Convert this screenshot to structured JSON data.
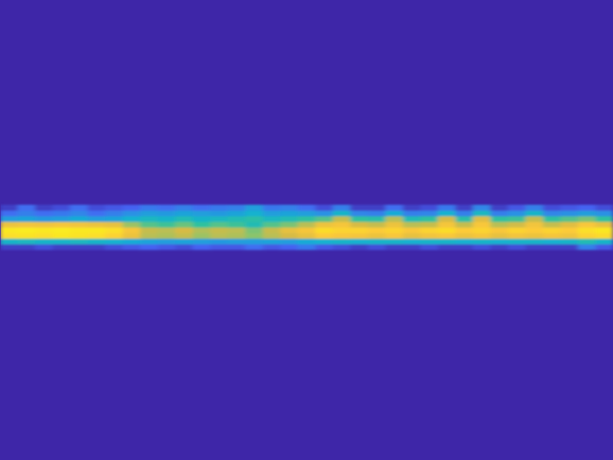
{
  "chart_data": {
    "type": "heatmap",
    "x": [
      0,
      1,
      2,
      3,
      4,
      5,
      6,
      7,
      8,
      9,
      10,
      11,
      12,
      13,
      14,
      15,
      16,
      17,
      18,
      19,
      20,
      21,
      22,
      23,
      24,
      25,
      26,
      27,
      28,
      29,
      30,
      31,
      32,
      33,
      34
    ],
    "y": [
      38,
      39,
      40,
      41,
      42,
      43,
      44,
      45
    ],
    "z": [
      [
        0.05,
        0.05,
        0.08,
        0.05,
        0.05,
        0.05,
        0.08,
        0.1,
        0.12,
        0.1,
        0.08,
        0.12,
        0.1,
        0.1,
        0.15,
        0.1,
        0.12,
        0.18,
        0.1,
        0.08,
        0.05,
        0.08,
        0.05,
        0.05,
        0.08,
        0.05,
        0.05,
        0.08,
        0.05,
        0.08,
        0.05,
        0.05,
        0.05,
        0.2,
        0.1
      ],
      [
        0.4,
        0.42,
        0.4,
        0.4,
        0.42,
        0.4,
        0.38,
        0.35,
        0.32,
        0.3,
        0.32,
        0.3,
        0.28,
        0.3,
        0.3,
        0.32,
        0.3,
        0.35,
        0.38,
        0.4,
        0.38,
        0.4,
        0.4,
        0.38,
        0.4,
        0.4,
        0.38,
        0.4,
        0.38,
        0.4,
        0.4,
        0.38,
        0.4,
        0.45,
        0.4
      ],
      [
        0.93,
        0.94,
        0.93,
        0.95,
        0.94,
        0.93,
        0.9,
        0.82,
        0.7,
        0.68,
        0.72,
        0.65,
        0.7,
        0.68,
        0.62,
        0.7,
        0.75,
        0.8,
        0.88,
        0.86,
        0.85,
        0.82,
        0.86,
        0.8,
        0.84,
        0.86,
        0.82,
        0.85,
        0.8,
        0.84,
        0.82,
        0.85,
        0.83,
        0.9,
        0.92
      ],
      [
        0.95,
        0.96,
        0.95,
        0.96,
        0.95,
        0.95,
        0.93,
        0.85,
        0.72,
        0.7,
        0.75,
        0.68,
        0.72,
        0.7,
        0.6,
        0.72,
        0.8,
        0.85,
        0.92,
        0.9,
        0.9,
        0.88,
        0.9,
        0.86,
        0.9,
        0.92,
        0.88,
        0.9,
        0.86,
        0.9,
        0.88,
        0.9,
        0.88,
        0.93,
        0.95
      ],
      [
        0.82,
        0.84,
        0.83,
        0.85,
        0.84,
        0.82,
        0.8,
        0.65,
        0.55,
        0.52,
        0.58,
        0.5,
        0.55,
        0.52,
        0.45,
        0.55,
        0.6,
        0.7,
        0.82,
        0.85,
        0.75,
        0.72,
        0.82,
        0.7,
        0.72,
        0.85,
        0.72,
        0.86,
        0.7,
        0.74,
        0.84,
        0.72,
        0.78,
        0.86,
        0.8
      ],
      [
        0.3,
        0.32,
        0.28,
        0.3,
        0.35,
        0.3,
        0.32,
        0.38,
        0.42,
        0.4,
        0.45,
        0.4,
        0.42,
        0.45,
        0.48,
        0.42,
        0.45,
        0.5,
        0.55,
        0.72,
        0.5,
        0.48,
        0.7,
        0.45,
        0.5,
        0.75,
        0.48,
        0.78,
        0.5,
        0.52,
        0.72,
        0.5,
        0.55,
        0.6,
        0.5
      ],
      [
        0.15,
        0.2,
        0.15,
        0.18,
        0.22,
        0.15,
        0.2,
        0.25,
        0.3,
        0.28,
        0.32,
        0.3,
        0.28,
        0.32,
        0.38,
        0.3,
        0.32,
        0.3,
        0.25,
        0.4,
        0.22,
        0.2,
        0.35,
        0.2,
        0.22,
        0.38,
        0.2,
        0.42,
        0.2,
        0.25,
        0.4,
        0.22,
        0.25,
        0.3,
        0.25
      ],
      [
        0.05,
        0.15,
        0.05,
        0.08,
        0.15,
        0.08,
        0.1,
        0.12,
        0.18,
        0.15,
        0.2,
        0.15,
        0.18,
        0.2,
        0.3,
        0.18,
        0.2,
        0.15,
        0.08,
        0.2,
        0.05,
        0.05,
        0.15,
        0.05,
        0.08,
        0.18,
        0.05,
        0.22,
        0.05,
        0.1,
        0.2,
        0.08,
        0.1,
        0.12,
        0.08
      ]
    ],
    "xlim": [
      -0.5,
      34.5
    ],
    "ylim": [
      0,
      82
    ],
    "zlim": [
      0,
      1
    ],
    "tick_labels": false
  }
}
